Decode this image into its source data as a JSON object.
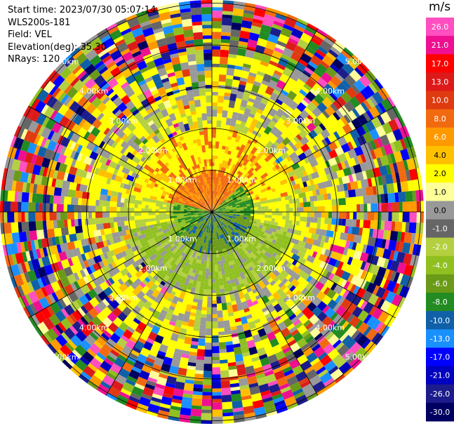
{
  "header": {
    "start_time": "Start time: 2023/07/30 05:07:14",
    "instrument": "WLS200s-181",
    "field": "Field: VEL",
    "elevation": "Elevation(deg): 35.30",
    "nrays": "NRays: 120"
  },
  "chart_data": {
    "type": "heatmap",
    "projection": "polar-ppi",
    "nrays": 120,
    "range_ring_labels": [
      "1.00km",
      "2.00km",
      "3.00km",
      "4.00km",
      "5.00km"
    ],
    "range_rings_km": [
      1,
      2,
      3,
      4,
      5
    ],
    "colorbar": {
      "unit": "m/s",
      "tick_labels": [
        "26.0",
        "21.0",
        "17.0",
        "13.0",
        "10.0",
        "8.0",
        "6.0",
        "4.0",
        "2.0",
        "1.0",
        "0.0",
        "-1.0",
        "-2.0",
        "-4.0",
        "-6.0",
        "-8.0",
        "-10.0",
        "-13.0",
        "-17.0",
        "-21.0",
        "-26.0",
        "-30.0"
      ],
      "colors": [
        "#ff4fc0",
        "#ee1090",
        "#ff0000",
        "#dd1a1a",
        "#e03a10",
        "#f26a10",
        "#ff9900",
        "#ffc000",
        "#ffff00",
        "#ffff99",
        "#999999",
        "#666666",
        "#b4d040",
        "#90c020",
        "#6b9a18",
        "#228b22",
        "#1060a8",
        "#1a90ff",
        "#0000ff",
        "#0000c0",
        "#1c1c8c",
        "#000060"
      ]
    }
  }
}
